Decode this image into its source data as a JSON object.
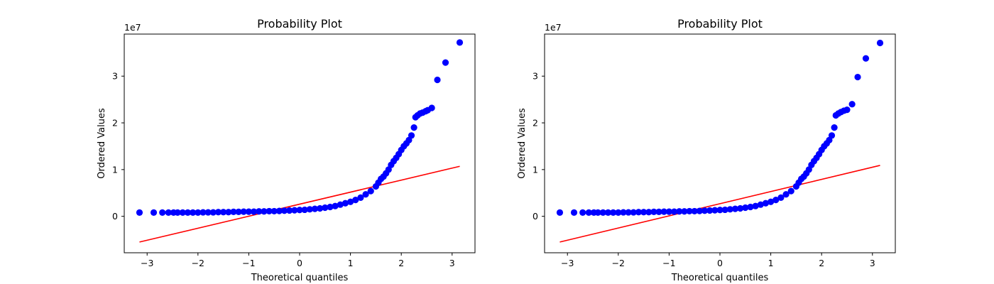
{
  "chart_data": [
    {
      "type": "scatter",
      "title": "Probability Plot",
      "xlabel": "Theoretical quantiles",
      "ylabel": "Ordered Values",
      "y_offset_label": "1e7",
      "xlim": [
        -3.45,
        3.45
      ],
      "ylim": [
        -7.8,
        39.0
      ],
      "y_scale_factor": 10000000,
      "xticks": [
        -3,
        -2,
        -1,
        0,
        1,
        2,
        3
      ],
      "xtick_labels": [
        "−3",
        "−2",
        "−1",
        "0",
        "1",
        "2",
        "3"
      ],
      "yticks": [
        0,
        10,
        20,
        30
      ],
      "ytick_labels": [
        "0",
        "1",
        "2",
        "3"
      ],
      "grid": false,
      "series": [
        {
          "kind": "points",
          "color": "#0000ff",
          "points": [
            [
              -3.15,
              0.8
            ],
            [
              -2.87,
              0.8
            ],
            [
              -2.7,
              0.8
            ],
            [
              -2.58,
              0.8
            ],
            [
              -2.48,
              0.8
            ],
            [
              -2.4,
              0.8
            ],
            [
              -2.3,
              0.8
            ],
            [
              -2.2,
              0.8
            ],
            [
              -2.1,
              0.8
            ],
            [
              -2.0,
              0.8
            ],
            [
              -1.9,
              0.85
            ],
            [
              -1.8,
              0.85
            ],
            [
              -1.7,
              0.85
            ],
            [
              -1.6,
              0.9
            ],
            [
              -1.5,
              0.9
            ],
            [
              -1.4,
              0.9
            ],
            [
              -1.3,
              0.95
            ],
            [
              -1.2,
              0.95
            ],
            [
              -1.1,
              1.0
            ],
            [
              -1.0,
              1.0
            ],
            [
              -0.9,
              1.0
            ],
            [
              -0.8,
              1.05
            ],
            [
              -0.7,
              1.05
            ],
            [
              -0.6,
              1.1
            ],
            [
              -0.5,
              1.1
            ],
            [
              -0.4,
              1.15
            ],
            [
              -0.3,
              1.2
            ],
            [
              -0.2,
              1.25
            ],
            [
              -0.1,
              1.3
            ],
            [
              0.0,
              1.35
            ],
            [
              0.1,
              1.4
            ],
            [
              0.2,
              1.5
            ],
            [
              0.3,
              1.6
            ],
            [
              0.4,
              1.7
            ],
            [
              0.5,
              1.85
            ],
            [
              0.6,
              2.0
            ],
            [
              0.7,
              2.2
            ],
            [
              0.8,
              2.5
            ],
            [
              0.9,
              2.8
            ],
            [
              1.0,
              3.1
            ],
            [
              1.1,
              3.5
            ],
            [
              1.2,
              4.0
            ],
            [
              1.3,
              4.7
            ],
            [
              1.4,
              5.4
            ],
            [
              1.5,
              6.4
            ],
            [
              1.55,
              7.2
            ],
            [
              1.6,
              8.0
            ],
            [
              1.65,
              8.5
            ],
            [
              1.7,
              9.2
            ],
            [
              1.75,
              10.0
            ],
            [
              1.8,
              11.0
            ],
            [
              1.85,
              11.8
            ],
            [
              1.9,
              12.5
            ],
            [
              1.95,
              13.3
            ],
            [
              2.0,
              14.2
            ],
            [
              2.05,
              15.0
            ],
            [
              2.1,
              15.6
            ],
            [
              2.15,
              16.3
            ],
            [
              2.2,
              17.3
            ],
            [
              2.25,
              19.0
            ],
            [
              2.28,
              21.2
            ],
            [
              2.32,
              21.6
            ],
            [
              2.37,
              22.0
            ],
            [
              2.42,
              22.2
            ],
            [
              2.48,
              22.5
            ],
            [
              2.52,
              22.7
            ],
            [
              2.6,
              23.2
            ],
            [
              2.71,
              29.2
            ],
            [
              2.87,
              32.9
            ],
            [
              3.15,
              37.2
            ]
          ]
        },
        {
          "kind": "line",
          "color": "#ff0000",
          "points": [
            [
              -3.15,
              -5.5
            ],
            [
              3.15,
              10.7
            ]
          ]
        }
      ]
    },
    {
      "type": "scatter",
      "title": "Probability Plot",
      "xlabel": "Theoretical quantiles",
      "ylabel": "Ordered Values",
      "y_offset_label": "1e7",
      "xlim": [
        -3.45,
        3.45
      ],
      "ylim": [
        -7.8,
        39.0
      ],
      "y_scale_factor": 10000000,
      "xticks": [
        -3,
        -2,
        -1,
        0,
        1,
        2,
        3
      ],
      "xtick_labels": [
        "−3",
        "−2",
        "−1",
        "0",
        "1",
        "2",
        "3"
      ],
      "yticks": [
        0,
        10,
        20,
        30
      ],
      "ytick_labels": [
        "0",
        "1",
        "2",
        "3"
      ],
      "grid": false,
      "series": [
        {
          "kind": "points",
          "color": "#0000ff",
          "points": [
            [
              -3.15,
              0.8
            ],
            [
              -2.87,
              0.8
            ],
            [
              -2.7,
              0.8
            ],
            [
              -2.58,
              0.8
            ],
            [
              -2.48,
              0.8
            ],
            [
              -2.4,
              0.8
            ],
            [
              -2.3,
              0.8
            ],
            [
              -2.2,
              0.8
            ],
            [
              -2.1,
              0.8
            ],
            [
              -2.0,
              0.8
            ],
            [
              -1.9,
              0.85
            ],
            [
              -1.8,
              0.85
            ],
            [
              -1.7,
              0.85
            ],
            [
              -1.6,
              0.9
            ],
            [
              -1.5,
              0.9
            ],
            [
              -1.4,
              0.9
            ],
            [
              -1.3,
              0.95
            ],
            [
              -1.2,
              0.95
            ],
            [
              -1.1,
              1.0
            ],
            [
              -1.0,
              1.0
            ],
            [
              -0.9,
              1.0
            ],
            [
              -0.8,
              1.05
            ],
            [
              -0.7,
              1.05
            ],
            [
              -0.6,
              1.1
            ],
            [
              -0.5,
              1.1
            ],
            [
              -0.4,
              1.15
            ],
            [
              -0.3,
              1.2
            ],
            [
              -0.2,
              1.25
            ],
            [
              -0.1,
              1.3
            ],
            [
              0.0,
              1.35
            ],
            [
              0.1,
              1.4
            ],
            [
              0.2,
              1.5
            ],
            [
              0.3,
              1.6
            ],
            [
              0.4,
              1.7
            ],
            [
              0.5,
              1.85
            ],
            [
              0.6,
              2.0
            ],
            [
              0.7,
              2.2
            ],
            [
              0.8,
              2.5
            ],
            [
              0.9,
              2.8
            ],
            [
              1.0,
              3.1
            ],
            [
              1.1,
              3.5
            ],
            [
              1.2,
              4.0
            ],
            [
              1.3,
              4.7
            ],
            [
              1.4,
              5.4
            ],
            [
              1.5,
              6.4
            ],
            [
              1.55,
              7.2
            ],
            [
              1.6,
              8.0
            ],
            [
              1.65,
              8.5
            ],
            [
              1.7,
              9.2
            ],
            [
              1.75,
              10.0
            ],
            [
              1.8,
              11.0
            ],
            [
              1.85,
              11.8
            ],
            [
              1.9,
              12.5
            ],
            [
              1.95,
              13.3
            ],
            [
              2.0,
              14.2
            ],
            [
              2.05,
              15.0
            ],
            [
              2.1,
              15.6
            ],
            [
              2.15,
              16.3
            ],
            [
              2.2,
              17.3
            ],
            [
              2.25,
              19.0
            ],
            [
              2.28,
              21.6
            ],
            [
              2.33,
              22.0
            ],
            [
              2.38,
              22.3
            ],
            [
              2.44,
              22.6
            ],
            [
              2.5,
              22.8
            ],
            [
              2.6,
              24.0
            ],
            [
              2.71,
              29.8
            ],
            [
              2.87,
              33.8
            ],
            [
              3.15,
              37.1
            ]
          ]
        },
        {
          "kind": "line",
          "color": "#ff0000",
          "points": [
            [
              -3.15,
              -5.5
            ],
            [
              3.15,
              10.9
            ]
          ]
        }
      ]
    }
  ]
}
